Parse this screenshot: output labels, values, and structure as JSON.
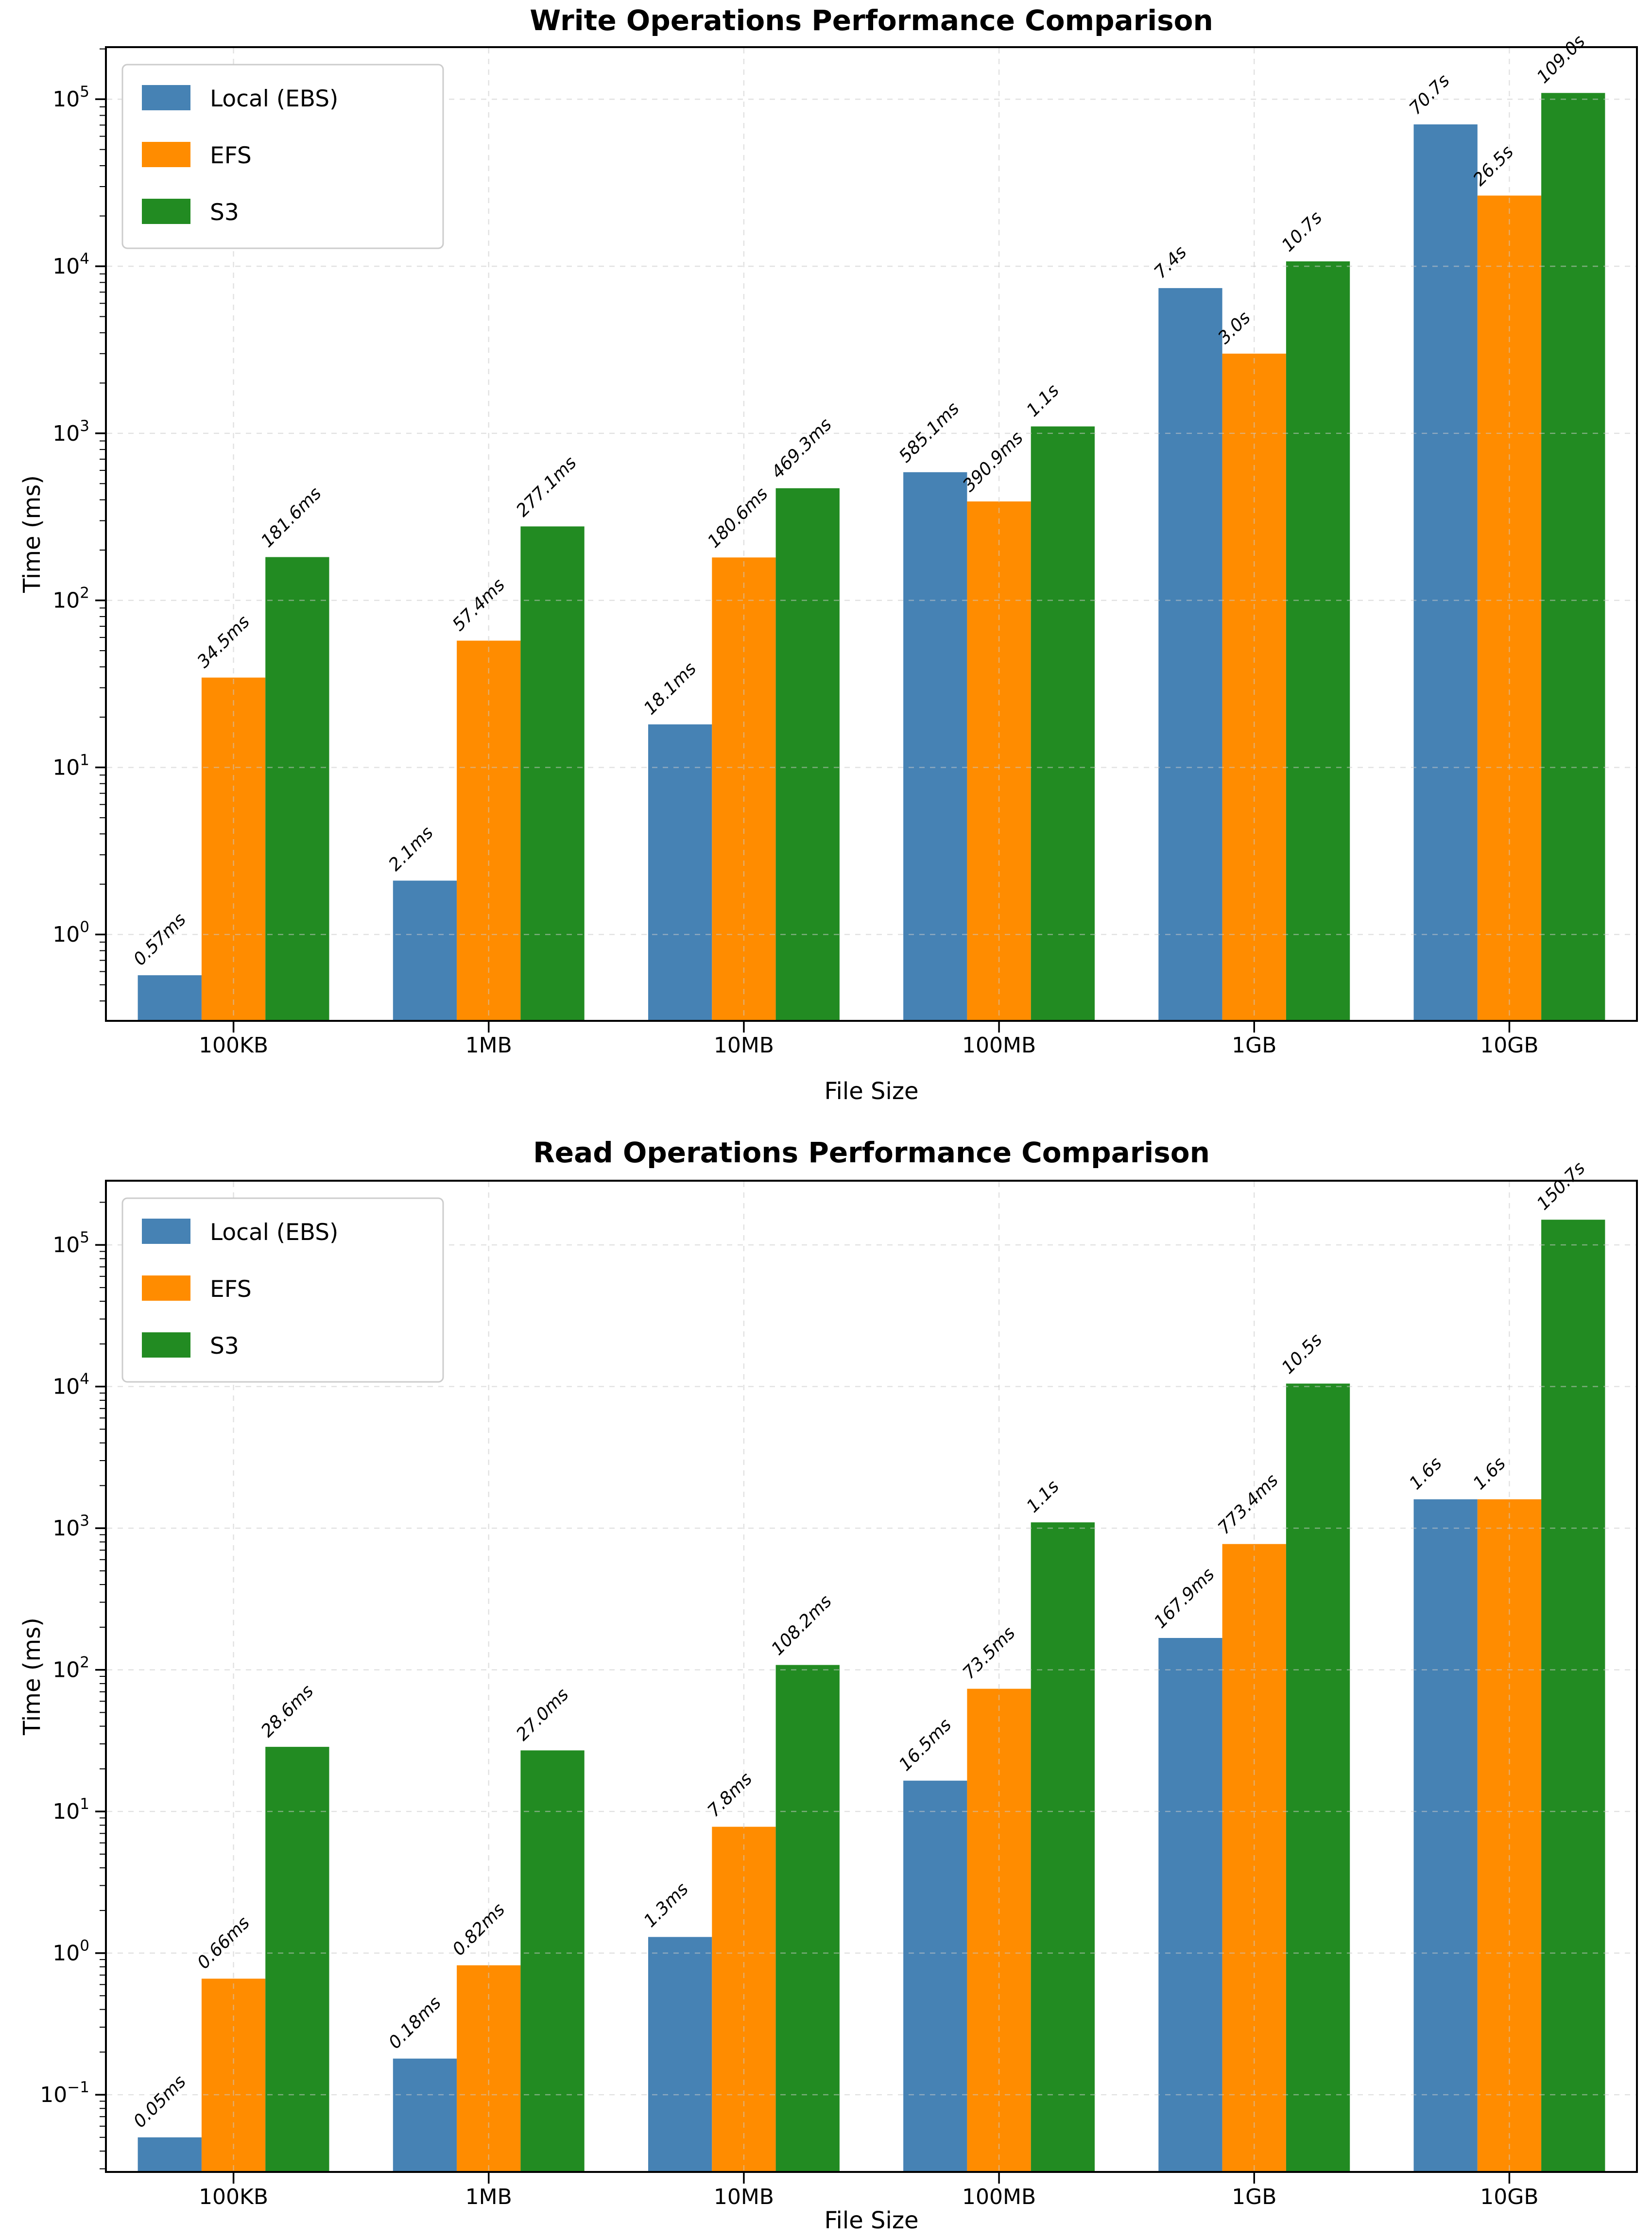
{
  "figure": {
    "background": "#ffffff"
  },
  "legend": {
    "items": [
      "Local (EBS)",
      "EFS",
      "S3"
    ]
  },
  "chart_data": [
    {
      "type": "bar",
      "title": "Write Operations Performance Comparison",
      "xlabel": "File Size",
      "ylabel": "Time (ms)",
      "yscale": "log",
      "grid": true,
      "legend_position": "upper-left",
      "categories": [
        "100KB",
        "1MB",
        "10MB",
        "100MB",
        "1GB",
        "10GB"
      ],
      "ytick_exponents": [
        0,
        1,
        2,
        3,
        4,
        5
      ],
      "ylim": [
        0.304,
        205000
      ],
      "series": [
        {
          "name": "Local (EBS)",
          "color": "#4682b4",
          "values_ms": [
            0.57,
            2.1,
            18.1,
            585.1,
            7400,
            70700
          ],
          "labels": [
            "0.57ms",
            "2.1ms",
            "18.1ms",
            "585.1ms",
            "7.4s",
            "70.7s"
          ]
        },
        {
          "name": "EFS",
          "color": "#ff8c00",
          "values_ms": [
            34.5,
            57.4,
            180.6,
            390.9,
            3000,
            26500
          ],
          "labels": [
            "34.5ms",
            "57.4ms",
            "180.6ms",
            "390.9ms",
            "3.0s",
            "26.5s"
          ]
        },
        {
          "name": "S3",
          "color": "#228b22",
          "values_ms": [
            181.6,
            277.1,
            469.3,
            1100,
            10700,
            109000
          ],
          "labels": [
            "181.6ms",
            "277.1ms",
            "469.3ms",
            "1.1s",
            "10.7s",
            "109.0s"
          ]
        }
      ]
    },
    {
      "type": "bar",
      "title": "Read Operations Performance Comparison",
      "xlabel": "File Size",
      "ylabel": "Time (ms)",
      "yscale": "log",
      "grid": true,
      "legend_position": "upper-left",
      "categories": [
        "100KB",
        "1MB",
        "10MB",
        "100MB",
        "1GB",
        "10GB"
      ],
      "ytick_exponents": [
        -1,
        0,
        1,
        2,
        3,
        4,
        5
      ],
      "ylim": [
        0.0285,
        284000
      ],
      "series": [
        {
          "name": "Local (EBS)",
          "color": "#4682b4",
          "values_ms": [
            0.05,
            0.18,
            1.3,
            16.5,
            167.9,
            1600
          ],
          "labels": [
            "0.05ms",
            "0.18ms",
            "1.3ms",
            "16.5ms",
            "167.9ms",
            "1.6s"
          ]
        },
        {
          "name": "EFS",
          "color": "#ff8c00",
          "values_ms": [
            0.66,
            0.82,
            7.8,
            73.5,
            773.4,
            1600
          ],
          "labels": [
            "0.66ms",
            "0.82ms",
            "7.8ms",
            "73.5ms",
            "773.4ms",
            "1.6s"
          ]
        },
        {
          "name": "S3",
          "color": "#228b22",
          "values_ms": [
            28.6,
            27.0,
            108.2,
            1100,
            10500,
            150700
          ],
          "labels": [
            "28.6ms",
            "27.0ms",
            "108.2ms",
            "1.1s",
            "10.5s",
            "150.7s"
          ]
        }
      ]
    }
  ],
  "style": {
    "grid_color": "#c9c9c9",
    "spine_color": "#000000",
    "legend_border": "#cccccc",
    "text_color": "#000000"
  }
}
